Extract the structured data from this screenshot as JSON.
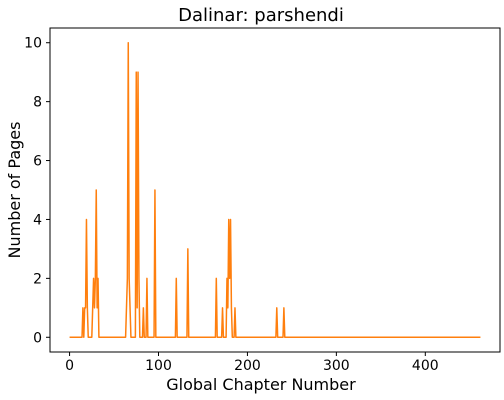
{
  "chart_data": {
    "type": "line",
    "title": "Dalinar: parshendi",
    "xlabel": "Global Chapter Number",
    "ylabel": "Number of Pages",
    "xlim": [
      -22,
      484
    ],
    "ylim": [
      -0.5,
      10.5
    ],
    "xticks": [
      0,
      100,
      200,
      300,
      400
    ],
    "yticks": [
      0,
      2,
      4,
      6,
      8,
      10
    ],
    "grid": false,
    "legend": "none",
    "series": [
      {
        "color": "#ff7f0e",
        "points": [
          [
            0,
            0
          ],
          [
            14,
            0
          ],
          [
            15,
            1
          ],
          [
            16,
            0
          ],
          [
            17,
            1
          ],
          [
            18,
            1
          ],
          [
            19,
            4
          ],
          [
            20,
            1
          ],
          [
            21,
            0
          ],
          [
            25,
            0
          ],
          [
            26,
            1
          ],
          [
            27,
            2
          ],
          [
            28,
            1
          ],
          [
            29,
            2
          ],
          [
            30,
            5
          ],
          [
            31,
            1
          ],
          [
            32,
            2
          ],
          [
            33,
            0
          ],
          [
            63,
            0
          ],
          [
            64,
            1
          ],
          [
            65,
            2
          ],
          [
            66,
            10
          ],
          [
            67,
            2
          ],
          [
            68,
            1
          ],
          [
            69,
            0
          ],
          [
            74,
            0
          ],
          [
            75,
            9
          ],
          [
            76,
            1
          ],
          [
            77,
            9
          ],
          [
            78,
            2
          ],
          [
            79,
            0
          ],
          [
            82,
            0
          ],
          [
            83,
            1
          ],
          [
            84,
            0
          ],
          [
            86,
            0
          ],
          [
            87,
            2
          ],
          [
            88,
            0
          ],
          [
            95,
            0
          ],
          [
            96,
            5
          ],
          [
            97,
            0
          ],
          [
            119,
            0
          ],
          [
            120,
            2
          ],
          [
            121,
            0
          ],
          [
            132,
            0
          ],
          [
            133,
            3
          ],
          [
            134,
            0
          ],
          [
            164,
            0
          ],
          [
            165,
            2
          ],
          [
            166,
            0
          ],
          [
            171,
            0
          ],
          [
            172,
            1
          ],
          [
            173,
            0
          ],
          [
            176,
            0
          ],
          [
            177,
            2
          ],
          [
            178,
            1
          ],
          [
            179,
            4
          ],
          [
            180,
            2
          ],
          [
            181,
            4
          ],
          [
            182,
            1
          ],
          [
            183,
            0
          ],
          [
            185,
            0
          ],
          [
            186,
            1
          ],
          [
            187,
            0
          ],
          [
            232,
            0
          ],
          [
            233,
            1
          ],
          [
            234,
            0
          ],
          [
            240,
            0
          ],
          [
            241,
            1
          ],
          [
            242,
            0
          ],
          [
            462,
            0
          ]
        ]
      }
    ]
  }
}
